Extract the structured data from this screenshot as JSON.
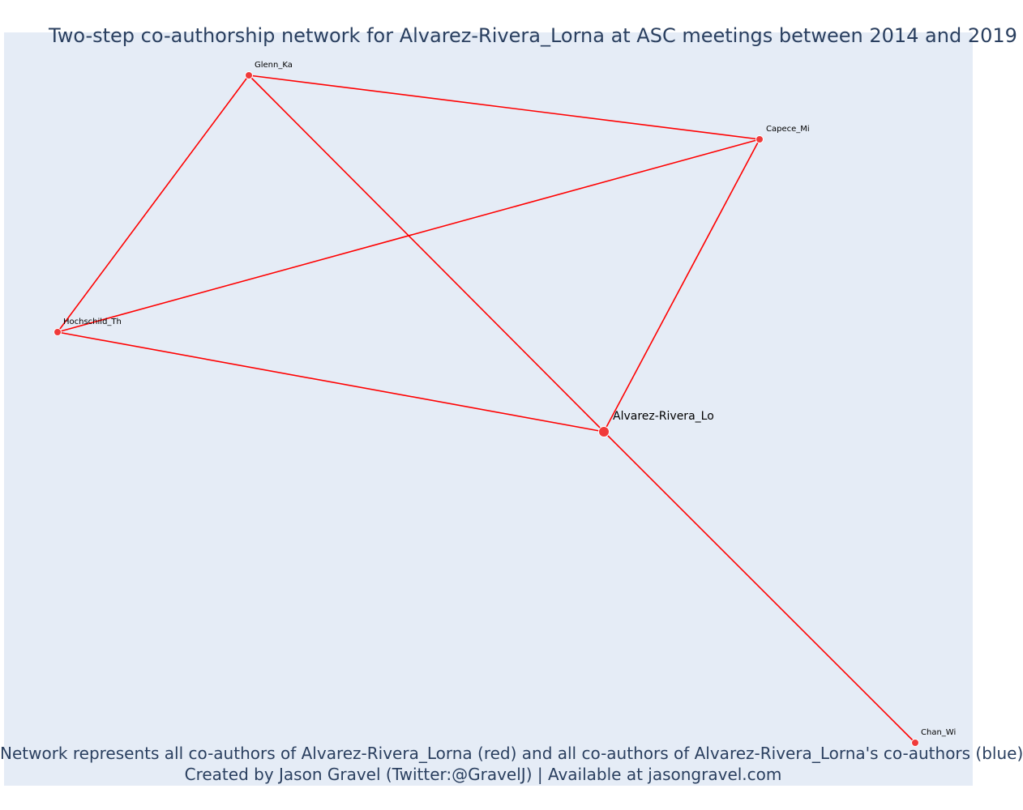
{
  "title": "Two-step co-authorship network for Alvarez-Rivera_Lorna at ASC meetings between 2014 and 2019",
  "caption_line1": "Network represents all co-authors of Alvarez-Rivera_Lorna (red) and all co-authors of Alvarez-Rivera_Lorna's co-authors (blue)",
  "caption_line2": "Created by Jason Gravel (Twitter:@GravelJ) | Available at jasongravel.com",
  "colors": {
    "edge": "#ff0000",
    "node": "#f03a3a",
    "background": "#e5ecf6",
    "text": "#2a3f5f"
  },
  "nodes": [
    {
      "id": "glenn",
      "label": "Glenn_Ka",
      "focal": false
    },
    {
      "id": "capece",
      "label": "Capece_Mi",
      "focal": false
    },
    {
      "id": "hochschild",
      "label": "Hochschild_Th",
      "focal": false
    },
    {
      "id": "alvarez",
      "label": "Alvarez-Rivera_Lo",
      "focal": true
    },
    {
      "id": "chan",
      "label": "Chan_Wi",
      "focal": false
    }
  ],
  "edges": [
    {
      "source": "glenn",
      "target": "capece"
    },
    {
      "source": "glenn",
      "target": "hochschild"
    },
    {
      "source": "glenn",
      "target": "alvarez"
    },
    {
      "source": "capece",
      "target": "hochschild"
    },
    {
      "source": "capece",
      "target": "alvarez"
    },
    {
      "source": "hochschild",
      "target": "alvarez"
    },
    {
      "source": "alvarez",
      "target": "chan"
    }
  ]
}
